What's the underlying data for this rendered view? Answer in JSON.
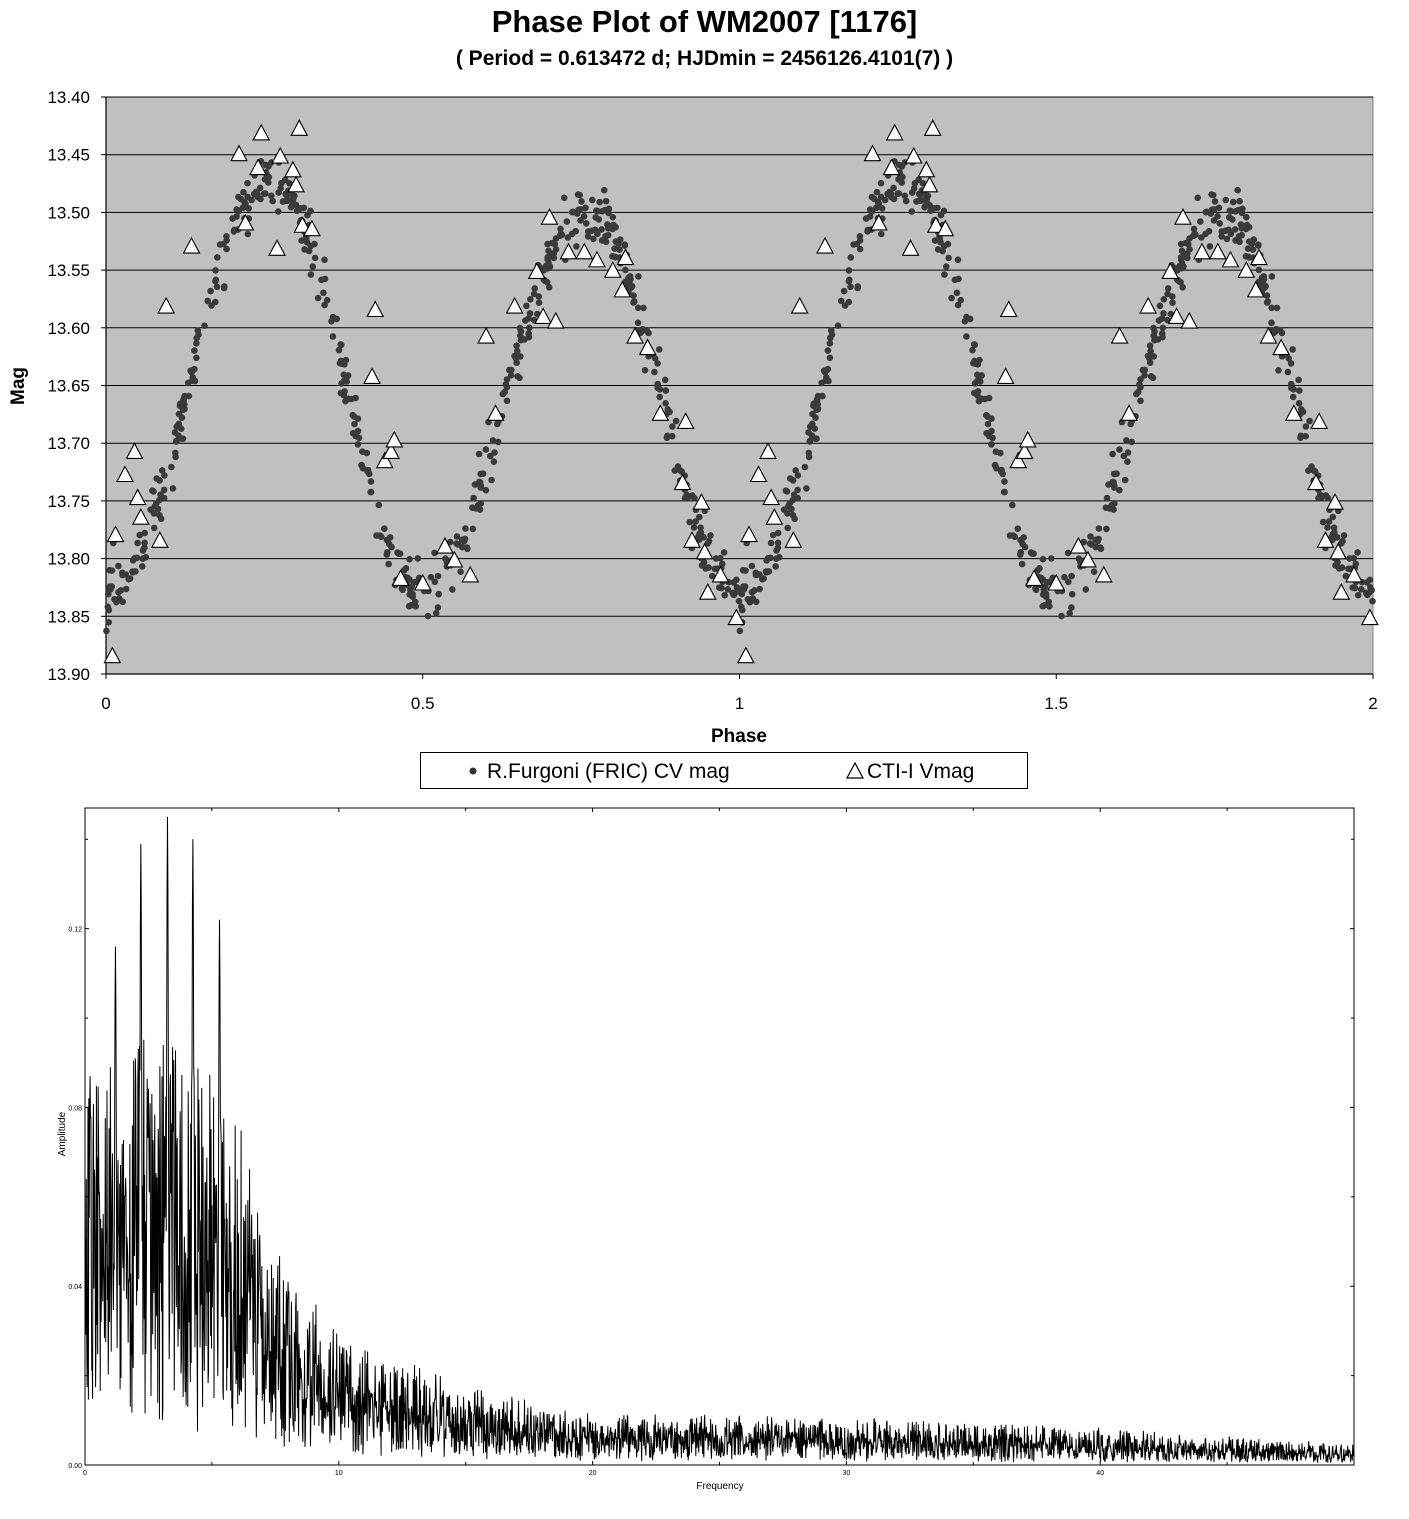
{
  "chart_data": [
    {
      "type": "scatter",
      "title": "Phase Plot of WM2007 [1176]",
      "subtitle": "( Period = 0.613472 d; HJDmin = 2456126.4101(7) )",
      "xlabel": "Phase",
      "ylabel": "Mag",
      "xlim": [
        0,
        2
      ],
      "ylim": [
        13.4,
        13.9
      ],
      "y_inverted": true,
      "x_ticks": [
        "0",
        "0.5",
        "1",
        "1.5",
        "2"
      ],
      "y_ticks": [
        "13.40",
        "13.45",
        "13.50",
        "13.55",
        "13.60",
        "13.65",
        "13.70",
        "13.75",
        "13.80",
        "13.85",
        "13.90"
      ],
      "grid": "horizontal",
      "plot_background": "#c0c0c0",
      "legend_position": "bottom",
      "series": [
        {
          "name": "R.Furgoni (FRIC) CV mag",
          "marker": "dot",
          "color": "#333333",
          "model": {
            "description": "double-humped light curve, period 0.5 in phase",
            "minima": [
              0.0,
              0.5,
              1.0,
              1.5,
              2.0
            ],
            "min_mag": 13.83,
            "maxima": [
              {
                "phase": 0.26,
                "mag": 13.47
              },
              {
                "phase": 0.76,
                "mag": 13.5
              },
              {
                "phase": 1.26,
                "mag": 13.47
              },
              {
                "phase": 1.76,
                "mag": 13.5
              }
            ],
            "scatter_mag": 0.012,
            "points_per_cycle": 600
          }
        },
        {
          "name": "CTI-I Vmag",
          "marker": "triangle",
          "color": "#ffffff",
          "points": [
            [
              0.01,
              13.885
            ],
            [
              0.015,
              13.78
            ],
            [
              0.03,
              13.728
            ],
            [
              0.045,
              13.708
            ],
            [
              0.05,
              13.748
            ],
            [
              0.055,
              13.765
            ],
            [
              0.085,
              13.785
            ],
            [
              0.095,
              13.582
            ],
            [
              0.135,
              13.53
            ],
            [
              0.21,
              13.45
            ],
            [
              0.22,
              13.51
            ],
            [
              0.24,
              13.462
            ],
            [
              0.245,
              13.432
            ],
            [
              0.27,
              13.532
            ],
            [
              0.275,
              13.452
            ],
            [
              0.295,
              13.464
            ],
            [
              0.3,
              13.477
            ],
            [
              0.305,
              13.428
            ],
            [
              0.31,
              13.512
            ],
            [
              0.325,
              13.515
            ],
            [
              0.42,
              13.643
            ],
            [
              0.425,
              13.585
            ],
            [
              0.44,
              13.716
            ],
            [
              0.45,
              13.708
            ],
            [
              0.455,
              13.698
            ],
            [
              0.465,
              13.818
            ],
            [
              0.5,
              13.822
            ],
            [
              0.535,
              13.79
            ],
            [
              0.55,
              13.802
            ],
            [
              0.575,
              13.815
            ],
            [
              0.6,
              13.608
            ],
            [
              0.615,
              13.675
            ],
            [
              0.645,
              13.582
            ],
            [
              0.68,
              13.552
            ],
            [
              0.69,
              13.591
            ],
            [
              0.7,
              13.505
            ],
            [
              0.71,
              13.595
            ],
            [
              0.73,
              13.535
            ],
            [
              0.755,
              13.535
            ],
            [
              0.775,
              13.542
            ],
            [
              0.8,
              13.551
            ],
            [
              0.815,
              13.568
            ],
            [
              0.82,
              13.54
            ],
            [
              0.835,
              13.608
            ],
            [
              0.855,
              13.618
            ],
            [
              0.875,
              13.675
            ],
            [
              0.91,
              13.735
            ],
            [
              0.915,
              13.682
            ],
            [
              0.925,
              13.785
            ],
            [
              0.94,
              13.752
            ],
            [
              0.945,
              13.795
            ],
            [
              0.95,
              13.83
            ],
            [
              0.97,
              13.815
            ],
            [
              0.995,
              13.852
            ]
          ]
        }
      ]
    },
    {
      "type": "line",
      "title": "",
      "xlabel": "Frequency",
      "ylabel": "Amplitude",
      "xlim": [
        0,
        50
      ],
      "ylim": [
        0,
        0.147
      ],
      "x_ticks": [
        "0",
        "10",
        "20",
        "30",
        "40"
      ],
      "y_ticks": [
        "0.00",
        "0.04",
        "0.08",
        "0.12"
      ],
      "series": [
        {
          "name": "",
          "color": "#000000",
          "model": {
            "description": "periodogram amplitude spectrum, noisy, decaying with frequency",
            "peaks": [
              [
                2.2,
                0.139
              ],
              [
                3.25,
                0.145
              ],
              [
                4.25,
                0.14
              ],
              [
                5.3,
                0.122
              ],
              [
                1.2,
                0.116
              ],
              [
                0.2,
                0.087
              ]
            ],
            "envelope": [
              [
                0,
                0.075
              ],
              [
                3,
                0.09
              ],
              [
                6,
                0.07
              ],
              [
                7,
                0.045
              ],
              [
                10,
                0.025
              ],
              [
                15,
                0.015
              ],
              [
                20,
                0.01
              ],
              [
                30,
                0.009
              ],
              [
                40,
                0.007
              ],
              [
                50,
                0.004
              ]
            ],
            "n_samples": 3000
          }
        }
      ]
    }
  ]
}
